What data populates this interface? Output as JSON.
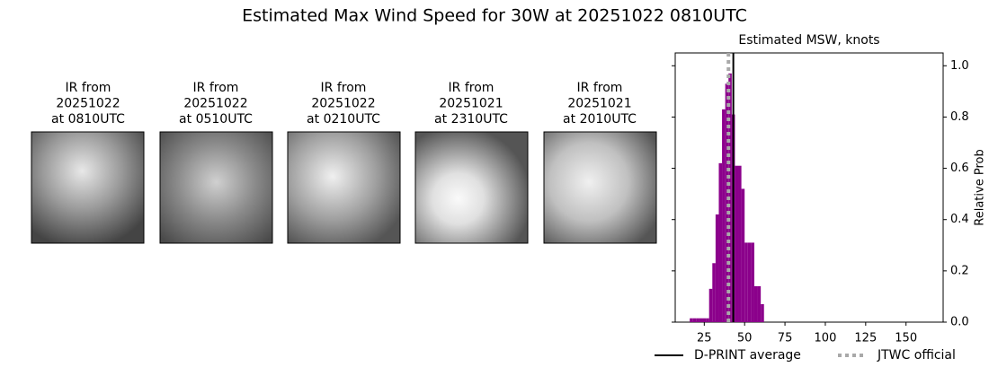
{
  "title": "Estimated Max Wind Speed for 30W at 20251022 0810UTC",
  "images": [
    {
      "title": [
        "IR from",
        "20251022",
        "at 0810UTC"
      ]
    },
    {
      "title": [
        "IR from",
        "20251022",
        "at 0510UTC"
      ]
    },
    {
      "title": [
        "IR from",
        "20251022",
        "at 0210UTC"
      ]
    },
    {
      "title": [
        "IR from",
        "20251021",
        "at 2310UTC"
      ]
    },
    {
      "title": [
        "IR from",
        "20251021",
        "at 2010UTC"
      ]
    }
  ],
  "chart_data": {
    "type": "histogram",
    "title": "Estimated MSW, knots",
    "y_label": "Relative Prob",
    "color": "#8b008b",
    "bins": [
      16,
      18,
      20,
      22,
      24,
      26,
      28,
      30,
      32,
      34,
      36,
      38,
      40,
      42,
      44,
      46,
      48,
      50,
      52,
      54,
      56,
      58,
      60,
      62
    ],
    "values": [
      0.015,
      0.015,
      0.015,
      0.015,
      0.015,
      0.015,
      0.13,
      0.23,
      0.42,
      0.62,
      0.83,
      0.93,
      0.97,
      0.81,
      0.61,
      0.61,
      0.52,
      0.31,
      0.31,
      0.31,
      0.14,
      0.14,
      0.07
    ],
    "xlim": [
      7,
      173
    ],
    "xticks": [
      25,
      50,
      75,
      100,
      125,
      150
    ],
    "ylim": [
      0,
      1.05
    ],
    "yticks": [
      {
        "value": 0,
        "label": "0.0"
      },
      {
        "value": 0.2,
        "label": "0.2"
      },
      {
        "value": 0.4,
        "label": "0.4"
      },
      {
        "value": 0.6,
        "label": "0.6"
      },
      {
        "value": 0.8,
        "label": "0.8"
      },
      {
        "value": 1,
        "label": "1.0"
      }
    ],
    "lines": [
      {
        "name": "D-PRINT average",
        "value": 43,
        "color": "#000000",
        "style": "solid"
      },
      {
        "name": "JTWC official",
        "value": 40,
        "color": "#a9a9a9",
        "style": "dotted"
      }
    ]
  }
}
